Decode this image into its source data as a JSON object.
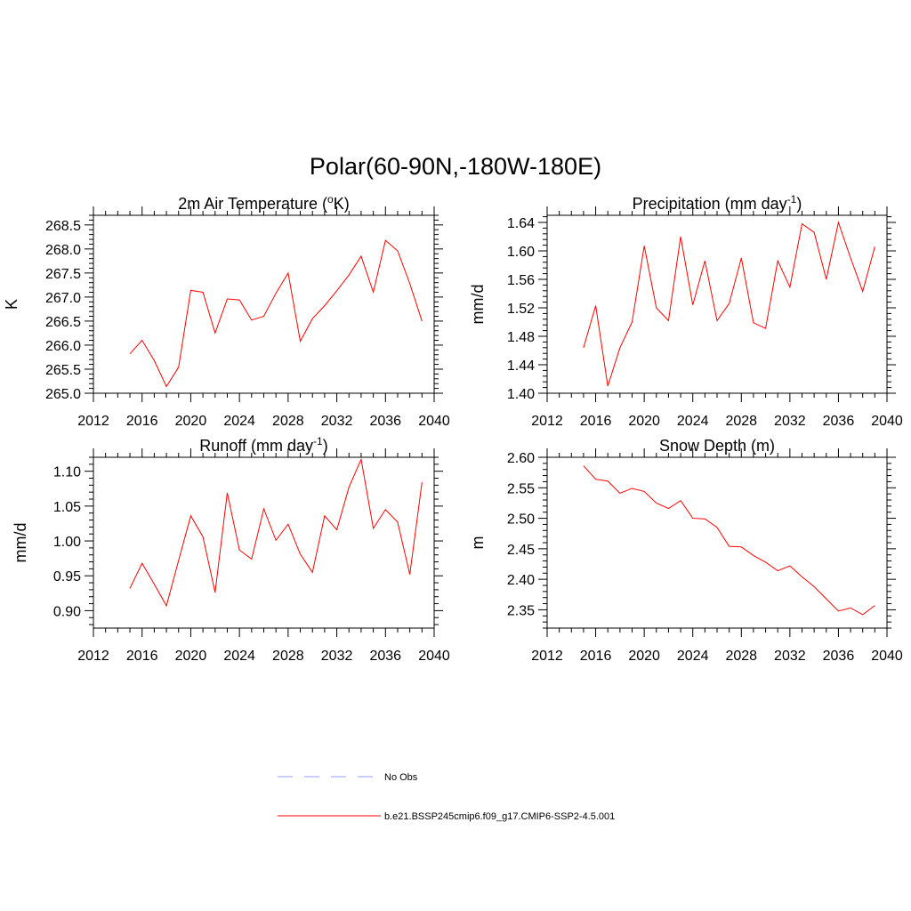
{
  "title": "Polar(60-90N,-180W-180E)",
  "legend": [
    {
      "label": "No Obs",
      "color": "#9999ff",
      "dash": true
    },
    {
      "label": "b.e21.BSSP245cmip6.f09_g17.CMIP6-SSP2-4.5.001",
      "color": "#ff0000",
      "dash": false
    }
  ],
  "chart_data": [
    {
      "type": "line",
      "title": "2m Air Temperature (",
      "title_sup": "o",
      "title_after": "K)",
      "ylabel": "K",
      "xlim": [
        2012,
        2040
      ],
      "xticks": [
        2012,
        2016,
        2020,
        2024,
        2028,
        2032,
        2036,
        2040
      ],
      "ylim": [
        265.0,
        268.7
      ],
      "yticks": [
        265.0,
        265.5,
        266.0,
        266.5,
        267.0,
        267.5,
        268.0,
        268.5
      ],
      "ytick_decimals": 1,
      "x": [
        2015,
        2016,
        2017,
        2018,
        2019,
        2020,
        2021,
        2022,
        2023,
        2024,
        2025,
        2026,
        2027,
        2028,
        2029,
        2030,
        2031,
        2032,
        2033,
        2034,
        2035,
        2036,
        2037,
        2038,
        2039
      ],
      "series": [
        {
          "color": "#ff0000",
          "values": [
            265.82,
            266.1,
            265.68,
            265.14,
            265.54,
            267.14,
            267.1,
            266.25,
            266.96,
            266.94,
            266.52,
            266.6,
            267.08,
            267.5,
            266.08,
            266.55,
            266.82,
            267.13,
            267.46,
            267.85,
            267.1,
            268.18,
            267.96,
            267.28,
            266.5
          ]
        }
      ]
    },
    {
      "type": "line",
      "title": "Precipitation (mm day",
      "title_sup": "-1",
      "title_after": ")",
      "ylabel": "mm/d",
      "xlim": [
        2012,
        2040
      ],
      "xticks": [
        2012,
        2016,
        2020,
        2024,
        2028,
        2032,
        2036,
        2040
      ],
      "ylim": [
        1.4,
        1.65
      ],
      "yticks": [
        1.4,
        1.44,
        1.48,
        1.52,
        1.56,
        1.6,
        1.64
      ],
      "ytick_decimals": 2,
      "x": [
        2015,
        2016,
        2017,
        2018,
        2019,
        2020,
        2021,
        2022,
        2023,
        2024,
        2025,
        2026,
        2027,
        2028,
        2029,
        2030,
        2031,
        2032,
        2033,
        2034,
        2035,
        2036,
        2037,
        2038,
        2039
      ],
      "series": [
        {
          "color": "#ff0000",
          "values": [
            1.464,
            1.523,
            1.41,
            1.464,
            1.5,
            1.607,
            1.52,
            1.502,
            1.62,
            1.524,
            1.586,
            1.502,
            1.526,
            1.59,
            1.499,
            1.491,
            1.586,
            1.549,
            1.638,
            1.626,
            1.56,
            1.64,
            1.59,
            1.543,
            1.606
          ]
        }
      ]
    },
    {
      "type": "line",
      "title": "Runoff (mm day",
      "title_sup": "-1",
      "title_after": ")",
      "ylabel": "mm/d",
      "xlim": [
        2012,
        2040
      ],
      "xticks": [
        2012,
        2016,
        2020,
        2024,
        2028,
        2032,
        2036,
        2040
      ],
      "ylim": [
        0.875,
        1.12
      ],
      "yticks": [
        0.9,
        0.95,
        1.0,
        1.05,
        1.1
      ],
      "ytick_decimals": 2,
      "x": [
        2015,
        2016,
        2017,
        2018,
        2019,
        2020,
        2021,
        2022,
        2023,
        2024,
        2025,
        2026,
        2027,
        2028,
        2029,
        2030,
        2031,
        2032,
        2033,
        2034,
        2035,
        2036,
        2037,
        2038,
        2039
      ],
      "series": [
        {
          "color": "#ff0000",
          "values": [
            0.932,
            0.968,
            0.938,
            0.907,
            0.972,
            1.036,
            1.006,
            0.926,
            1.069,
            0.987,
            0.974,
            1.046,
            1.001,
            1.024,
            0.981,
            0.955,
            1.036,
            1.016,
            1.077,
            1.117,
            1.018,
            1.045,
            1.027,
            0.952,
            1.084
          ]
        }
      ]
    },
    {
      "type": "line",
      "title": "Snow Depth (m)",
      "title_sup": "",
      "title_after": "",
      "ylabel": "m",
      "xlim": [
        2012,
        2040
      ],
      "xticks": [
        2012,
        2016,
        2020,
        2024,
        2028,
        2032,
        2036,
        2040
      ],
      "ylim": [
        2.32,
        2.6
      ],
      "yticks": [
        2.35,
        2.4,
        2.45,
        2.5,
        2.55,
        2.6
      ],
      "ytick_decimals": 2,
      "x": [
        2015,
        2016,
        2017,
        2018,
        2019,
        2020,
        2021,
        2022,
        2023,
        2024,
        2025,
        2026,
        2027,
        2028,
        2029,
        2030,
        2031,
        2032,
        2033,
        2034,
        2035,
        2036,
        2037,
        2038,
        2039
      ],
      "series": [
        {
          "color": "#ff0000",
          "values": [
            2.586,
            2.564,
            2.561,
            2.541,
            2.549,
            2.544,
            2.525,
            2.516,
            2.529,
            2.5,
            2.499,
            2.485,
            2.454,
            2.453,
            2.439,
            2.428,
            2.414,
            2.422,
            2.404,
            2.388,
            2.368,
            2.348,
            2.353,
            2.342,
            2.357
          ]
        }
      ]
    }
  ]
}
